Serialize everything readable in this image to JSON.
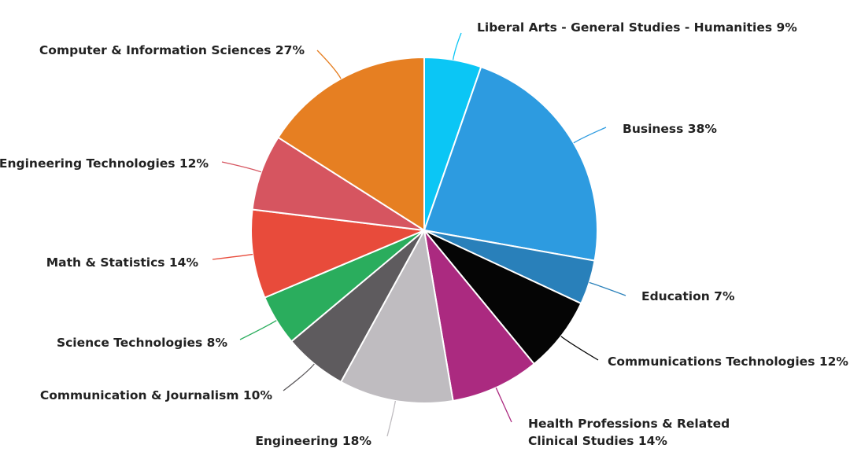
{
  "chart_data": {
    "type": "pie",
    "title": "",
    "slices": [
      {
        "label": "Liberal Arts - General Studies - Humanities 9%",
        "value": 9,
        "color": "#0bc6f5"
      },
      {
        "label": "Business 38%",
        "value": 38,
        "color": "#2d9be0"
      },
      {
        "label": "Education 7%",
        "value": 7,
        "color": "#2980ba"
      },
      {
        "label": "Communications Technologies 12%",
        "value": 12,
        "color": "#050505"
      },
      {
        "label": [
          "Health Professions & Related",
          "Clinical Studies 14%"
        ],
        "value": 14,
        "color": "#ab2a80"
      },
      {
        "label": "Engineering 18%",
        "value": 18,
        "color": "#bfbcc0"
      },
      {
        "label": "Communication & Journalism 10%",
        "value": 10,
        "color": "#5e5b5e"
      },
      {
        "label": "Science Technologies 8%",
        "value": 8,
        "color": "#2aad5d"
      },
      {
        "label": "Math & Statistics 14%",
        "value": 14,
        "color": "#e84b3b"
      },
      {
        "label": "Engineering Technologies 12%",
        "value": 12,
        "color": "#d65560"
      },
      {
        "label": "Computer & Information Sciences 27%",
        "value": 27,
        "color": "#e67f22"
      }
    ]
  }
}
